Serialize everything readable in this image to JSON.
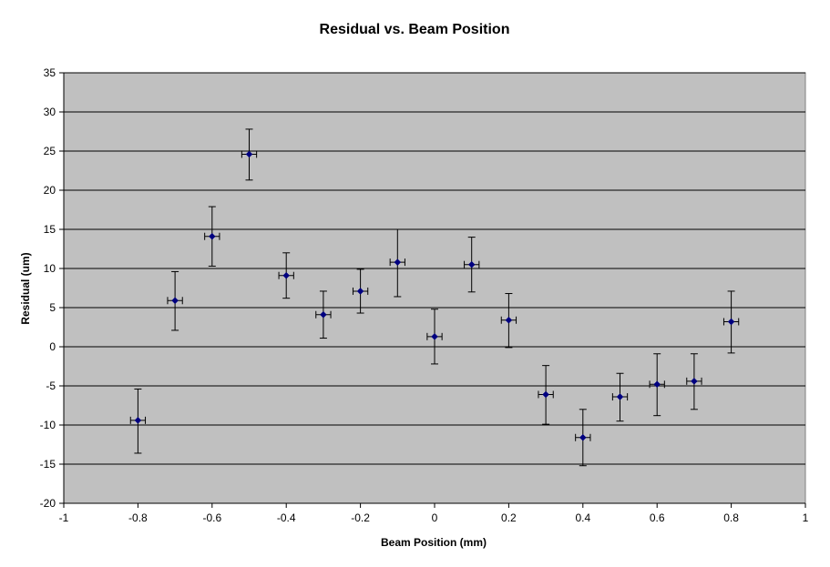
{
  "chart_data": {
    "type": "scatter",
    "title": "Residual vs. Beam Position",
    "xlabel": "Beam Position (mm)",
    "ylabel": "Residual (um)",
    "xlim": [
      -1,
      1
    ],
    "ylim": [
      -20,
      35
    ],
    "x_ticks": [
      -1,
      -0.8,
      -0.6,
      -0.4,
      -0.2,
      0,
      0.2,
      0.4,
      0.6,
      0.8,
      1
    ],
    "y_ticks": [
      -20,
      -15,
      -10,
      -5,
      0,
      5,
      10,
      15,
      20,
      25,
      30,
      35
    ],
    "grid": "horizontal",
    "legend": "none",
    "x_error": 0.02,
    "series": [
      {
        "points": [
          {
            "x": -0.8,
            "y": -9.4,
            "yerr_low": 4.2,
            "yerr_high": 4.0
          },
          {
            "x": -0.7,
            "y": 5.9,
            "yerr_low": 3.8,
            "yerr_high": 3.7
          },
          {
            "x": -0.6,
            "y": 14.1,
            "yerr_low": 3.8,
            "yerr_high": 3.8
          },
          {
            "x": -0.5,
            "y": 24.6,
            "yerr_low": 3.3,
            "yerr_high": 3.2
          },
          {
            "x": -0.4,
            "y": 9.1,
            "yerr_low": 2.9,
            "yerr_high": 2.9
          },
          {
            "x": -0.3,
            "y": 4.1,
            "yerr_low": 3.0,
            "yerr_high": 3.0
          },
          {
            "x": -0.2,
            "y": 7.1,
            "yerr_low": 2.8,
            "yerr_high": 2.8
          },
          {
            "x": -0.1,
            "y": 10.8,
            "yerr_low": 4.4,
            "yerr_high": 4.2
          },
          {
            "x": 0.0,
            "y": 1.3,
            "yerr_low": 3.5,
            "yerr_high": 3.5
          },
          {
            "x": 0.1,
            "y": 10.5,
            "yerr_low": 3.5,
            "yerr_high": 3.5
          },
          {
            "x": 0.2,
            "y": 3.4,
            "yerr_low": 3.5,
            "yerr_high": 3.4
          },
          {
            "x": 0.3,
            "y": -6.1,
            "yerr_low": 3.8,
            "yerr_high": 3.7
          },
          {
            "x": 0.4,
            "y": -11.6,
            "yerr_low": 3.6,
            "yerr_high": 3.6
          },
          {
            "x": 0.5,
            "y": -6.4,
            "yerr_low": 3.1,
            "yerr_high": 3.0
          },
          {
            "x": 0.6,
            "y": -4.8,
            "yerr_low": 4.0,
            "yerr_high": 3.9
          },
          {
            "x": 0.7,
            "y": -4.4,
            "yerr_low": 3.6,
            "yerr_high": 3.5
          },
          {
            "x": 0.8,
            "y": 3.2,
            "yerr_low": 4.0,
            "yerr_high": 3.9
          }
        ]
      }
    ],
    "colors": {
      "plot_background": "#c0c0c0",
      "gridline": "#000000",
      "marker": "#000080",
      "error_bar": "#000000"
    }
  }
}
